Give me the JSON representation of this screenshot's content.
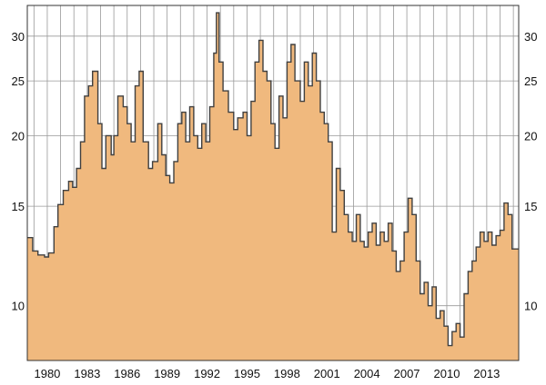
{
  "chart_data": {
    "type": "area",
    "title": "",
    "xlabel": "",
    "ylabel": "",
    "y_scale": "log",
    "ylim": [
      8,
      34
    ],
    "xlim": [
      1978.5,
      2015.4
    ],
    "y_ticks": [
      10,
      15,
      20,
      25,
      30
    ],
    "x_ticks": [
      1980,
      1983,
      1986,
      1989,
      1992,
      1995,
      1998,
      2001,
      2004,
      2007,
      2010,
      2013
    ],
    "grid": true,
    "y_axis_labels_both_sides": true,
    "colors": {
      "fill": "#f0b97e",
      "line": "#404040",
      "grid": "#999999",
      "axis": "#333333"
    },
    "series": [
      {
        "x": [
          1978.5,
          1978.9,
          1979.3,
          1979.8,
          1980.1,
          1980.5,
          1980.8,
          1981.2,
          1981.6,
          1981.9,
          1982.2,
          1982.5,
          1982.8,
          1983.1,
          1983.4,
          1983.8,
          1984.1,
          1984.4,
          1984.8,
          1985.0,
          1985.3,
          1985.7,
          1986.0,
          1986.3,
          1986.6,
          1986.9,
          1987.2,
          1987.6,
          1987.9,
          1988.3,
          1988.6,
          1988.9,
          1989.2,
          1989.5,
          1989.8,
          1990.1,
          1990.4,
          1990.7,
          1991.0,
          1991.3,
          1991.6,
          1991.9,
          1992.2,
          1992.5,
          1992.7,
          1992.9,
          1993.2,
          1993.6,
          1994.0,
          1994.3,
          1994.7,
          1995.0,
          1995.3,
          1995.6,
          1995.9,
          1996.2,
          1996.5,
          1996.8,
          1997.1,
          1997.4,
          1997.7,
          1998.0,
          1998.3,
          1998.6,
          1999.0,
          1999.3,
          1999.6,
          1999.9,
          2000.2,
          2000.5,
          2000.8,
          2001.1,
          2001.4,
          2001.7,
          2002.0,
          2002.3,
          2002.6,
          2002.9,
          2003.2,
          2003.5,
          2003.8,
          2004.1,
          2004.4,
          2004.7,
          2005.0,
          2005.3,
          2005.6,
          2005.9,
          2006.2,
          2006.5,
          2006.8,
          2007.1,
          2007.4,
          2007.7,
          2008.0,
          2008.3,
          2008.6,
          2008.9,
          2009.2,
          2009.5,
          2009.8,
          2010.1,
          2010.4,
          2010.7,
          2011.0,
          2011.3,
          2011.6,
          2011.9,
          2012.2,
          2012.5,
          2012.8,
          2013.1,
          2013.4,
          2013.7,
          2014.0,
          2014.3,
          2014.6,
          2014.9
        ],
        "values": [
          13.2,
          12.5,
          12.3,
          12.2,
          12.4,
          13.8,
          15.1,
          16.0,
          16.6,
          16.2,
          17.5,
          19.5,
          23.5,
          24.5,
          26.0,
          21.0,
          17.5,
          20.0,
          18.5,
          20.0,
          23.5,
          22.5,
          21.0,
          19.5,
          24.5,
          26.0,
          19.5,
          17.5,
          18.0,
          21.0,
          18.5,
          17.0,
          16.5,
          18.0,
          21.0,
          22.0,
          19.5,
          22.5,
          20.0,
          19.0,
          21.0,
          19.5,
          22.5,
          28.0,
          33.0,
          27.0,
          24.0,
          22.0,
          20.5,
          21.5,
          22.0,
          20.0,
          23.0,
          27.0,
          29.5,
          26.0,
          25.0,
          21.0,
          19.0,
          23.5,
          21.5,
          27.0,
          29.0,
          25.0,
          23.0,
          27.0,
          24.5,
          28.0,
          25.0,
          22.0,
          21.0,
          19.5,
          13.5,
          17.5,
          16.0,
          14.5,
          13.5,
          13.0,
          14.5,
          13.0,
          12.7,
          13.5,
          14.0,
          12.8,
          13.5,
          13.0,
          14.0,
          12.5,
          11.5,
          12.0,
          13.5,
          15.5,
          14.5,
          12.0,
          10.5,
          11.0,
          10.0,
          10.8,
          9.5,
          9.8,
          9.2,
          8.5,
          9.0,
          9.3,
          8.8,
          10.5,
          11.5,
          12.0,
          12.7,
          13.5,
          13.0,
          13.5,
          12.8,
          13.3,
          13.6,
          15.2,
          14.5,
          12.6
        ]
      }
    ]
  }
}
